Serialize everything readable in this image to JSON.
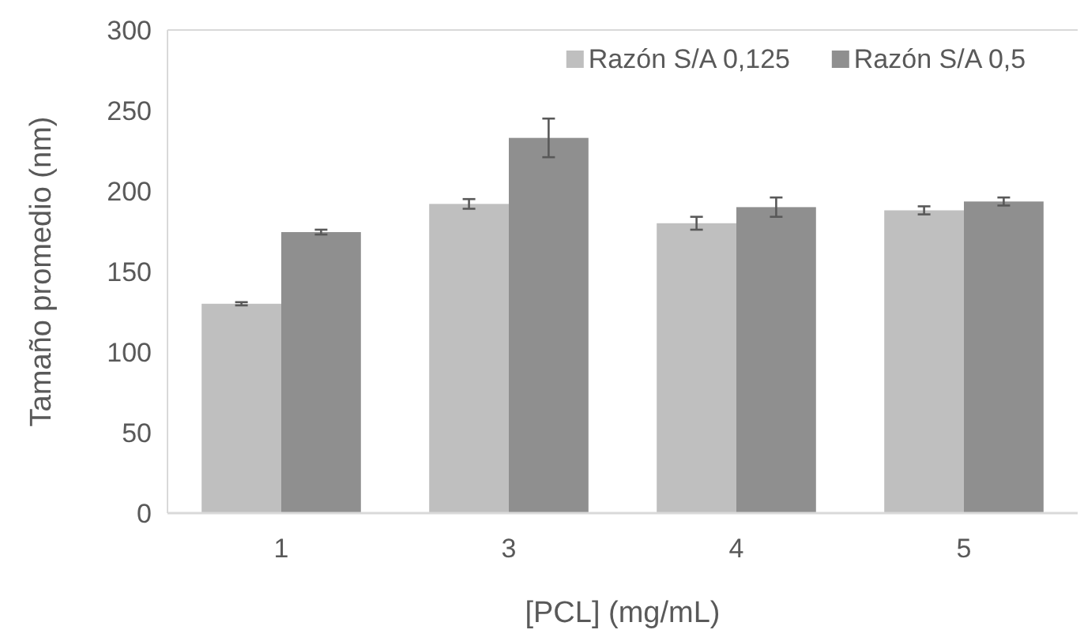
{
  "chart_data": {
    "type": "bar",
    "xlabel": "[PCL] (mg/mL)",
    "ylabel": "Tamaño promedio (nm)",
    "categories": [
      "1",
      "3",
      "4",
      "5"
    ],
    "series": [
      {
        "name": "Razón S/A 0,125",
        "color": "#bfbfbf",
        "values": [
          130,
          192,
          180,
          188
        ],
        "errors": [
          1,
          3,
          4,
          2.5
        ]
      },
      {
        "name": "Razón S/A 0,5",
        "color": "#8f8f8f",
        "values": [
          174.5,
          233,
          190,
          193.5
        ],
        "errors": [
          1.5,
          12,
          6,
          2.5
        ]
      }
    ],
    "ylim": [
      0,
      300
    ],
    "yticks": [
      0,
      50,
      100,
      150,
      200,
      250,
      300
    ],
    "legend": "top right"
  }
}
